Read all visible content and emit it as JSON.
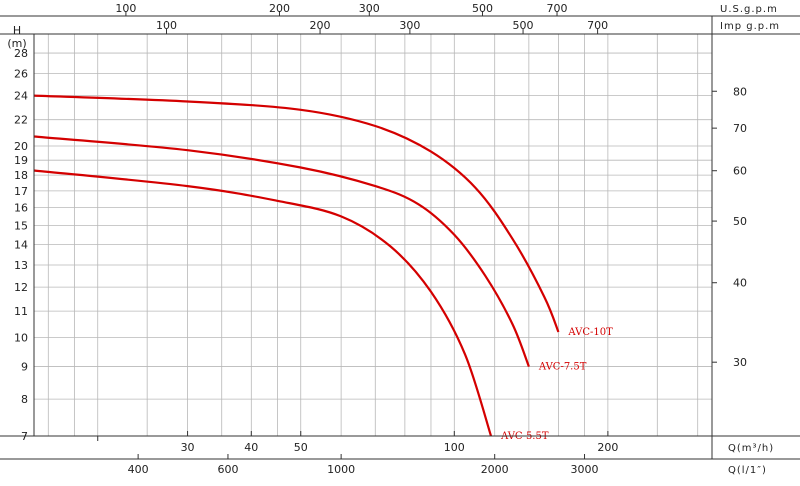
{
  "chart_data": {
    "type": "line",
    "title": "",
    "y_label": "H",
    "y_unit": "(m)",
    "x_bottom_label": "Q(m³/h)",
    "x_lps_label": "Q(l/1″)",
    "x_usgpm_label": "U.S.g.p.m",
    "x_impgpm_label": "Imp g.p.m",
    "x_scale": "log",
    "y_scale": "log",
    "xlim": [
      15,
      320
    ],
    "ylim": [
      7,
      30
    ],
    "grid": true,
    "y_ticks_left": [
      "7",
      "8",
      "9",
      "10",
      "11",
      "12",
      "13",
      "14",
      "15",
      "16",
      "17",
      "18",
      "19",
      "20",
      "22",
      "24",
      "26",
      "28"
    ],
    "y_ticks_right_ft": [
      "30",
      "40",
      "50",
      "60",
      "70",
      "80"
    ],
    "x_ticks_m3h": [
      "30",
      "40",
      "50",
      "100",
      "200"
    ],
    "x_ticks_lps": [
      "400",
      "600",
      "1000",
      "2000",
      "3000"
    ],
    "x_ticks_usgpm": [
      "100",
      "200",
      "300",
      "500",
      "700"
    ],
    "x_ticks_impgpm": [
      "100",
      "200",
      "300",
      "500",
      "700"
    ],
    "series": [
      {
        "name": "AVC-10T",
        "color": "#d40000",
        "points": [
          [
            15,
            24
          ],
          [
            30,
            23.5
          ],
          [
            50,
            22.8
          ],
          [
            70,
            21.5
          ],
          [
            90,
            19.6
          ],
          [
            110,
            17.2
          ],
          [
            130,
            14.3
          ],
          [
            150,
            11.6
          ],
          [
            160,
            10.2
          ]
        ]
      },
      {
        "name": "AVC-7.5T",
        "color": "#d40000",
        "points": [
          [
            15,
            20.7
          ],
          [
            30,
            19.7
          ],
          [
            50,
            18.5
          ],
          [
            70,
            17.3
          ],
          [
            85,
            16.2
          ],
          [
            100,
            14.5
          ],
          [
            115,
            12.5
          ],
          [
            130,
            10.5
          ],
          [
            140,
            9.0
          ]
        ]
      },
      {
        "name": "AVC-5.5T",
        "color": "#d40000",
        "points": [
          [
            15,
            18.3
          ],
          [
            30,
            17.3
          ],
          [
            45,
            16.4
          ],
          [
            60,
            15.5
          ],
          [
            75,
            13.9
          ],
          [
            90,
            11.8
          ],
          [
            105,
            9.4
          ],
          [
            118,
            7.0
          ]
        ]
      }
    ]
  }
}
